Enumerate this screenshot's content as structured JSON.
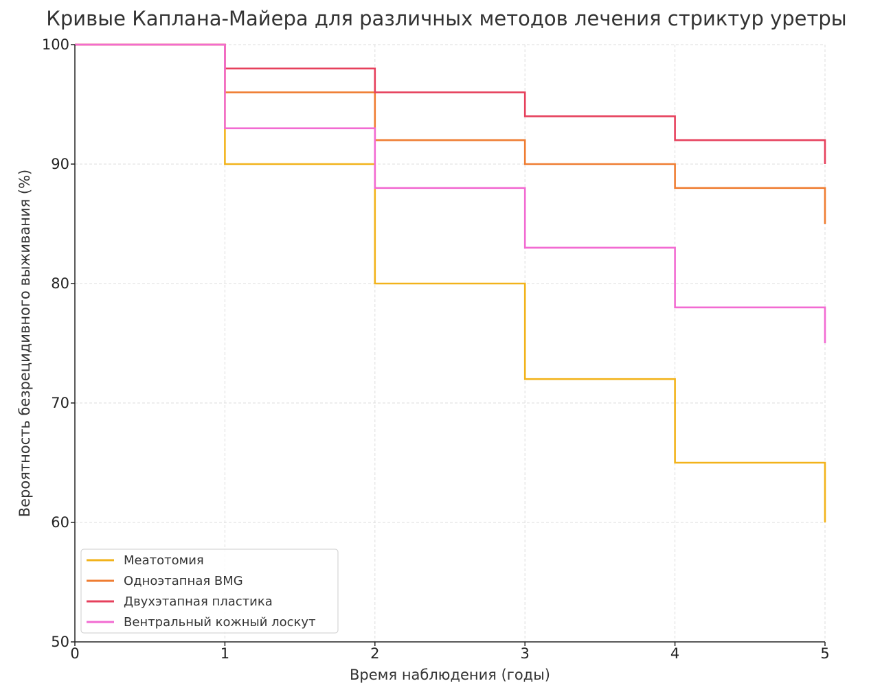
{
  "chart_data": {
    "type": "line",
    "step": true,
    "title": "Кривые Каплана-Майера для различных методов лечения стриктур уретры",
    "xlabel": "Время наблюдения (годы)",
    "ylabel": "Вероятность безрецидивного выживания (%)",
    "xlim": [
      0,
      5
    ],
    "ylim": [
      50,
      100
    ],
    "xticks": [
      0,
      1,
      2,
      3,
      4,
      5
    ],
    "yticks": [
      50,
      60,
      70,
      80,
      90,
      100
    ],
    "grid": true,
    "legend_position": "bottom-left",
    "x": [
      0,
      1,
      2,
      3,
      4,
      5
    ],
    "series": [
      {
        "name": "Меатотомия",
        "color": "#f2b31b",
        "values": [
          100,
          90,
          80,
          72,
          65,
          60
        ]
      },
      {
        "name": "Одноэтапная BMG",
        "color": "#ef7d32",
        "values": [
          100,
          96,
          92,
          90,
          88,
          85
        ]
      },
      {
        "name": "Двухэтапная пластика",
        "color": "#e6405c",
        "values": [
          100,
          98,
          96,
          94,
          92,
          90
        ]
      },
      {
        "name": "Вентральный кожный лоскут",
        "color": "#f26bd2",
        "values": [
          100,
          93,
          88,
          83,
          78,
          75
        ]
      }
    ]
  }
}
